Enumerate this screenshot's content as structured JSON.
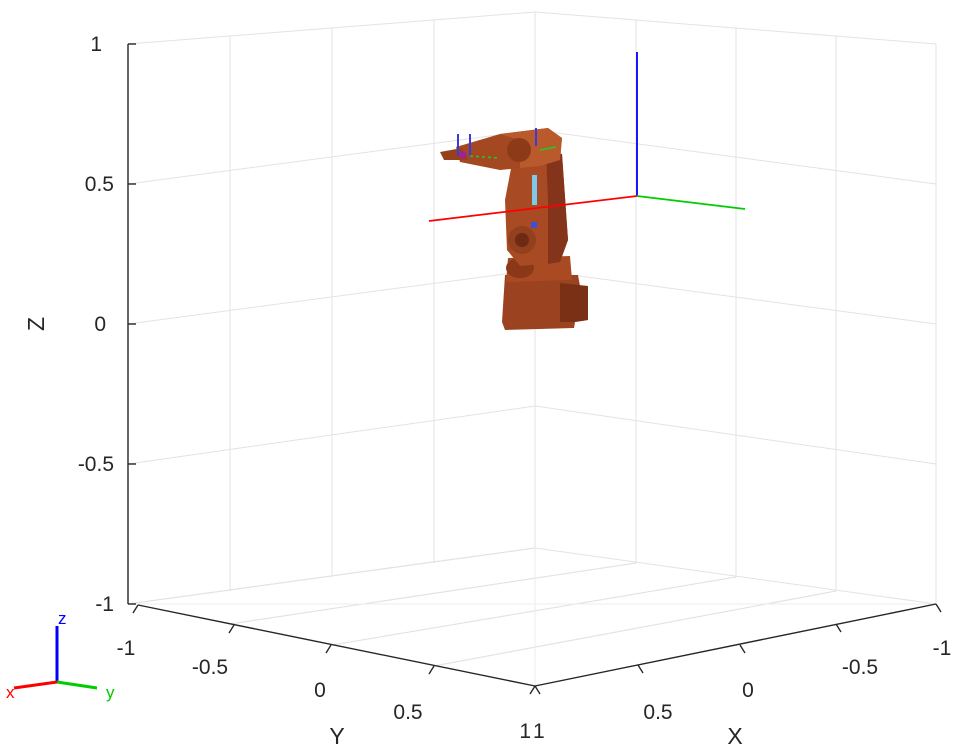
{
  "figure": {
    "axes": {
      "x_label": "X",
      "y_label": "Y",
      "z_label": "Z",
      "x_ticks": [
        "1",
        "0.5",
        "0",
        "-0.5",
        "-1"
      ],
      "y_ticks": [
        "-1",
        "-0.5",
        "0",
        "0.5",
        "1"
      ],
      "z_ticks": [
        "1",
        "0.5",
        "0",
        "-0.5",
        "-1"
      ],
      "grid": "on"
    },
    "frame_axes_colors": {
      "x": "#ff0000",
      "y": "#00cc00",
      "z": "#0000ff"
    },
    "robot": {
      "color": "#a0461f",
      "shade": "#7a3014",
      "highlight": "#c9693d"
    },
    "triad": {
      "x_label": "x",
      "y_label": "y",
      "z_label": "z",
      "colors": {
        "x": "#ff0000",
        "y": "#00cc00",
        "z": "#0000ff"
      }
    }
  }
}
